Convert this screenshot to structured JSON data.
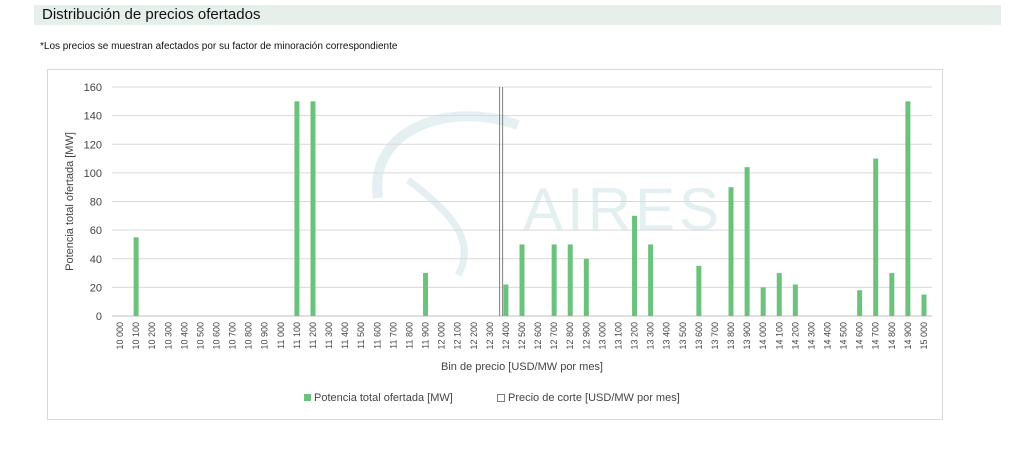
{
  "header": {
    "title": "Distribución de precios ofertados",
    "note": "*Los precios se muestran afectados por su factor de minoración correspondiente"
  },
  "watermark": {
    "text": "AIRES"
  },
  "colors": {
    "bar": "#6cc27c",
    "grid": "#d9d9d9",
    "cutoff": "#7f7f7f",
    "title_bg": "#e6efe9"
  },
  "chart_data": {
    "type": "bar",
    "xlabel": "Bin de precio [USD/MW por mes]",
    "ylabel": "Potencia total ofertada [MW]",
    "ylim": [
      0,
      160
    ],
    "yticks": [
      0,
      20,
      40,
      60,
      80,
      100,
      120,
      140,
      160
    ],
    "grid": true,
    "legend_position": "bottom",
    "categories": [
      "10 000",
      "10 100",
      "10 200",
      "10 300",
      "10 400",
      "10 500",
      "10 600",
      "10 700",
      "10 800",
      "10 900",
      "11 000",
      "11 100",
      "11 200",
      "11 300",
      "11 400",
      "11 500",
      "11 600",
      "11 700",
      "11 800",
      "11 900",
      "12 000",
      "12 100",
      "12 200",
      "12 300",
      "12 400",
      "12 500",
      "12 600",
      "12 700",
      "12 800",
      "12 900",
      "13 000",
      "13 100",
      "13 200",
      "13 300",
      "13 400",
      "13 500",
      "13 600",
      "13 700",
      "13 800",
      "13 900",
      "14 000",
      "14 100",
      "14 200",
      "14 300",
      "14 400",
      "14 500",
      "14 600",
      "14 700",
      "14 800",
      "14 900",
      "15 000"
    ],
    "series": [
      {
        "name": "Potencia total ofertada [MW]",
        "values": [
          0,
          55,
          0,
          0,
          0,
          0,
          0,
          0,
          0,
          0,
          0,
          150,
          150,
          0,
          0,
          0,
          0,
          0,
          0,
          30,
          0,
          0,
          0,
          0,
          22,
          50,
          0,
          50,
          50,
          40,
          0,
          0,
          70,
          50,
          0,
          0,
          35,
          0,
          90,
          104,
          20,
          30,
          22,
          0,
          0,
          0,
          18,
          110,
          30,
          150,
          15
        ]
      }
    ],
    "cutoff": {
      "name": "Precio de corte [USD/MW por mes]",
      "category": "12 400"
    }
  }
}
